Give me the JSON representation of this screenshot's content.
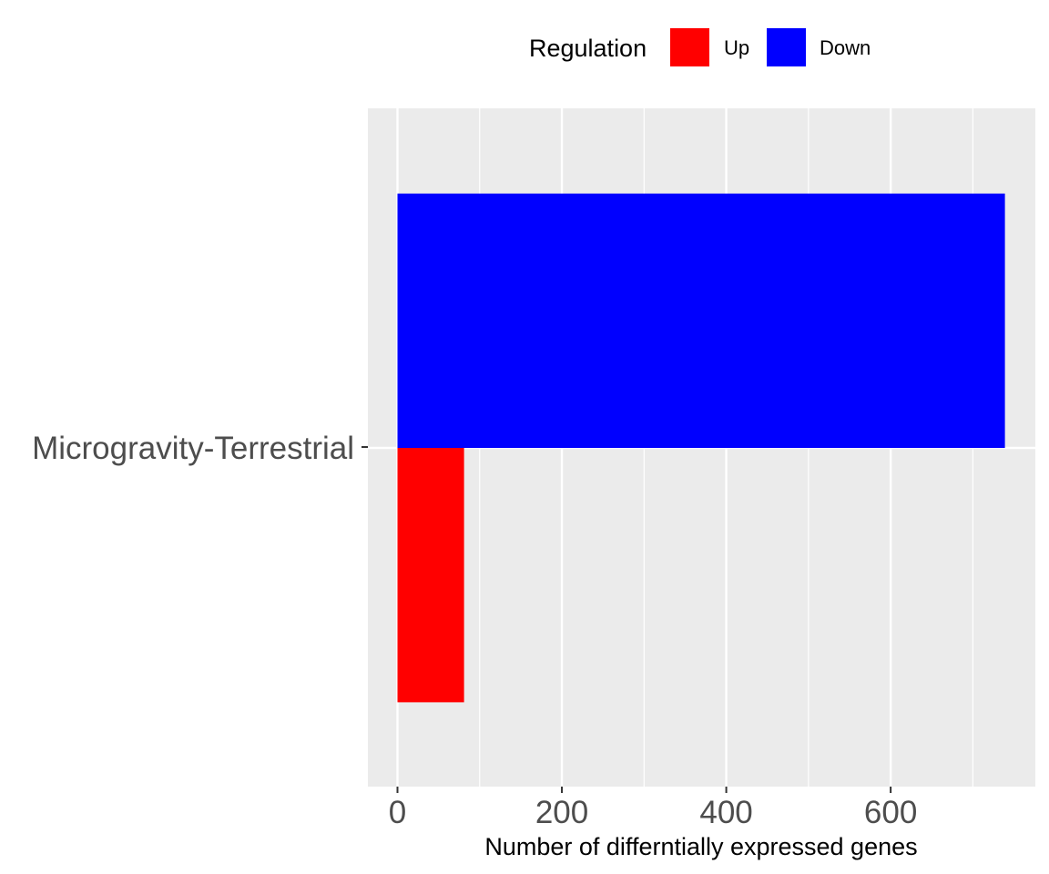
{
  "chart_data": {
    "type": "bar",
    "orientation": "horizontal",
    "categories": [
      "Microgravity-Terrestrial"
    ],
    "series": [
      {
        "name": "Up",
        "values": [
          81
        ],
        "color": "#ff0000"
      },
      {
        "name": "Down",
        "values": [
          739
        ],
        "color": "#0000ff"
      }
    ],
    "xlabel": "Number of differntially expressed genes",
    "ylabel": "",
    "xlim": [
      -36,
      776
    ],
    "xticks": [
      0,
      200,
      400,
      600
    ],
    "xtick_labels": [
      "0",
      "200",
      "400",
      "600"
    ],
    "grid": true,
    "panel_background": "#ebebeb",
    "grid_color": "#ffffff",
    "legend": {
      "title": "Regulation",
      "position": "top",
      "entries": [
        "Up",
        "Down"
      ]
    }
  }
}
